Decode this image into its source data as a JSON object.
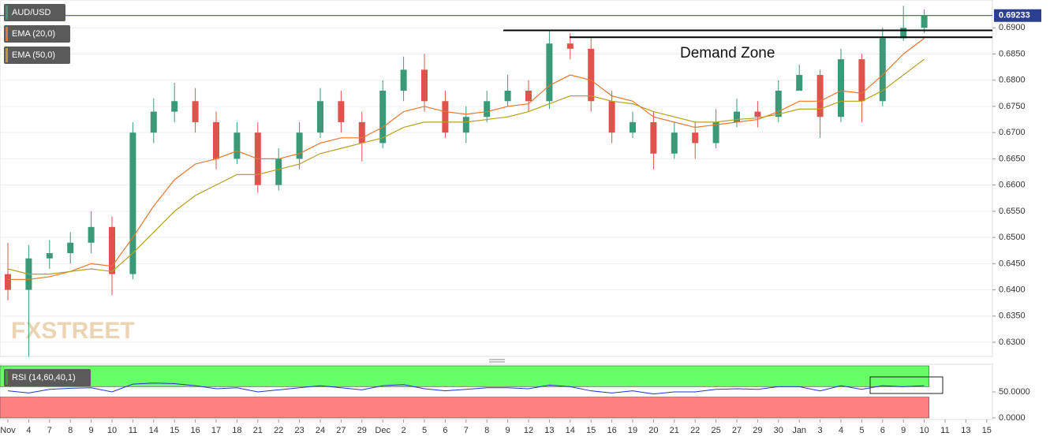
{
  "chart_data": [
    {
      "type": "candlestick",
      "title": "AUD/USD",
      "watermark": "FXSTREET",
      "categories": [
        "Nov",
        "4",
        "7",
        "8",
        "9",
        "10",
        "11",
        "14",
        "15",
        "16",
        "17",
        "18",
        "21",
        "22",
        "23",
        "24",
        "27",
        "29",
        "Dec",
        "2",
        "5",
        "6",
        "7",
        "8",
        "9",
        "12",
        "13",
        "14",
        "15",
        "16",
        "19",
        "20",
        "21",
        "22",
        "25",
        "27",
        "29",
        "30",
        "Jan",
        "3",
        "4",
        "5",
        "6",
        "9",
        "10",
        "11",
        "13",
        "15"
      ],
      "open": [
        0.643,
        0.64,
        0.646,
        0.647,
        0.649,
        0.652,
        0.643,
        0.67,
        0.674,
        0.676,
        0.672,
        0.665,
        0.67,
        0.66,
        0.665,
        0.67,
        0.676,
        0.672,
        0.668,
        0.678,
        0.682,
        0.676,
        0.67,
        0.673,
        0.676,
        0.678,
        0.676,
        0.687,
        0.686,
        0.676,
        0.67,
        0.672,
        0.666,
        0.67,
        0.668,
        0.672,
        0.674,
        0.673,
        0.678,
        0.681,
        0.673,
        0.684,
        0.676,
        0.688,
        0.69,
        null,
        null,
        null
      ],
      "high": [
        0.649,
        0.6485,
        0.6495,
        0.651,
        0.655,
        0.654,
        0.672,
        0.6765,
        0.6795,
        0.6785,
        0.674,
        0.672,
        0.672,
        0.667,
        0.672,
        0.6785,
        0.678,
        0.674,
        0.68,
        0.6845,
        0.685,
        0.678,
        0.675,
        0.678,
        0.681,
        0.68,
        0.6895,
        0.689,
        0.688,
        0.678,
        0.674,
        0.674,
        0.672,
        0.672,
        0.6745,
        0.6765,
        0.676,
        0.68,
        0.683,
        0.682,
        0.686,
        0.685,
        0.69,
        0.6942,
        0.6935,
        null,
        null,
        null
      ],
      "low": [
        0.638,
        0.6272,
        0.644,
        0.645,
        0.647,
        0.639,
        0.642,
        0.668,
        0.672,
        0.67,
        0.663,
        0.664,
        0.6585,
        0.659,
        0.663,
        0.669,
        0.67,
        0.6645,
        0.667,
        0.676,
        0.674,
        0.669,
        0.668,
        0.672,
        0.675,
        0.674,
        0.6745,
        0.684,
        0.674,
        0.668,
        0.669,
        0.663,
        0.665,
        0.665,
        0.667,
        0.671,
        0.671,
        0.672,
        0.678,
        0.669,
        0.672,
        0.672,
        0.675,
        0.6875,
        0.689,
        null,
        null,
        null
      ],
      "close": [
        0.64,
        0.646,
        0.647,
        0.649,
        0.652,
        0.643,
        0.67,
        0.674,
        0.676,
        0.672,
        0.665,
        0.67,
        0.66,
        0.665,
        0.67,
        0.676,
        0.672,
        0.668,
        0.678,
        0.682,
        0.676,
        0.67,
        0.673,
        0.676,
        0.678,
        0.676,
        0.687,
        0.686,
        0.676,
        0.67,
        0.672,
        0.666,
        0.67,
        0.668,
        0.672,
        0.674,
        0.673,
        0.678,
        0.681,
        0.673,
        0.684,
        0.676,
        0.688,
        0.69,
        0.6923,
        null,
        null,
        null
      ],
      "color_up": "#3a9a78",
      "color_down": "#e0524c",
      "series": [
        {
          "name": "EMA (20,0)",
          "color": "#e8772e",
          "values": [
            0.642,
            0.642,
            0.6425,
            0.6435,
            0.645,
            0.6445,
            0.65,
            0.656,
            0.661,
            0.664,
            0.665,
            0.6665,
            0.665,
            0.665,
            0.666,
            0.668,
            0.669,
            0.669,
            0.671,
            0.674,
            0.675,
            0.674,
            0.6735,
            0.674,
            0.675,
            0.6755,
            0.679,
            0.681,
            0.68,
            0.677,
            0.676,
            0.673,
            0.672,
            0.671,
            0.6715,
            0.672,
            0.6725,
            0.674,
            0.676,
            0.676,
            0.678,
            0.6775,
            0.681,
            0.685,
            0.688,
            null,
            null,
            null
          ]
        },
        {
          "name": "EMA (50,0)",
          "color": "#b5a020",
          "values": [
            0.644,
            0.643,
            0.643,
            0.6435,
            0.644,
            0.6435,
            0.647,
            0.651,
            0.655,
            0.658,
            0.66,
            0.662,
            0.662,
            0.663,
            0.664,
            0.666,
            0.667,
            0.668,
            0.669,
            0.671,
            0.672,
            0.672,
            0.672,
            0.6725,
            0.673,
            0.674,
            0.6755,
            0.677,
            0.677,
            0.676,
            0.6755,
            0.674,
            0.673,
            0.672,
            0.672,
            0.6725,
            0.6728,
            0.6735,
            0.6745,
            0.6745,
            0.676,
            0.676,
            0.678,
            0.681,
            0.684,
            null,
            null,
            null
          ]
        }
      ],
      "ylim": [
        0.6273,
        0.6953
      ],
      "yticks": [
        {
          "value": 0.63,
          "label": "0.6300"
        },
        {
          "value": 0.635,
          "label": "0.6350"
        },
        {
          "value": 0.64,
          "label": "0.6400"
        },
        {
          "value": 0.645,
          "label": "0.6450"
        },
        {
          "value": 0.65,
          "label": "0.6500"
        },
        {
          "value": 0.655,
          "label": "0.6550"
        },
        {
          "value": 0.66,
          "label": "0.6600"
        },
        {
          "value": 0.665,
          "label": "0.6650"
        },
        {
          "value": 0.67,
          "label": "0.6700"
        },
        {
          "value": 0.675,
          "label": "0.6750"
        },
        {
          "value": 0.68,
          "label": "0.6800"
        },
        {
          "value": 0.685,
          "label": "0.6850"
        },
        {
          "value": 0.69,
          "label": "0.6900"
        }
      ],
      "last_price": 0.69233,
      "demand_zone": {
        "label": "Demand Zone",
        "levels": [
          0.6895,
          0.6882
        ]
      },
      "grid": true
    },
    {
      "type": "line",
      "series": [
        {
          "name": "RSI (14,60,40,1)",
          "color": "#2233cc",
          "values": [
            52,
            48,
            55,
            57,
            58,
            50,
            65,
            67,
            66,
            62,
            56,
            58,
            50,
            54,
            58,
            62,
            58,
            54,
            62,
            64,
            56,
            52,
            55,
            58,
            58,
            56,
            63,
            60,
            52,
            48,
            52,
            46,
            50,
            50,
            55,
            56,
            55,
            60,
            60,
            52,
            62,
            55,
            62,
            60,
            62,
            null,
            null,
            null
          ]
        }
      ],
      "bands": [
        {
          "from": 60,
          "to": 100,
          "color": "#66ff66"
        },
        {
          "from": 0,
          "to": 40,
          "color": "#ff8080"
        }
      ],
      "ylim": [
        0,
        100
      ],
      "yticks": [
        {
          "value": 0,
          "label": "0.0000"
        },
        {
          "value": 50,
          "label": "50.0000"
        }
      ]
    }
  ]
}
